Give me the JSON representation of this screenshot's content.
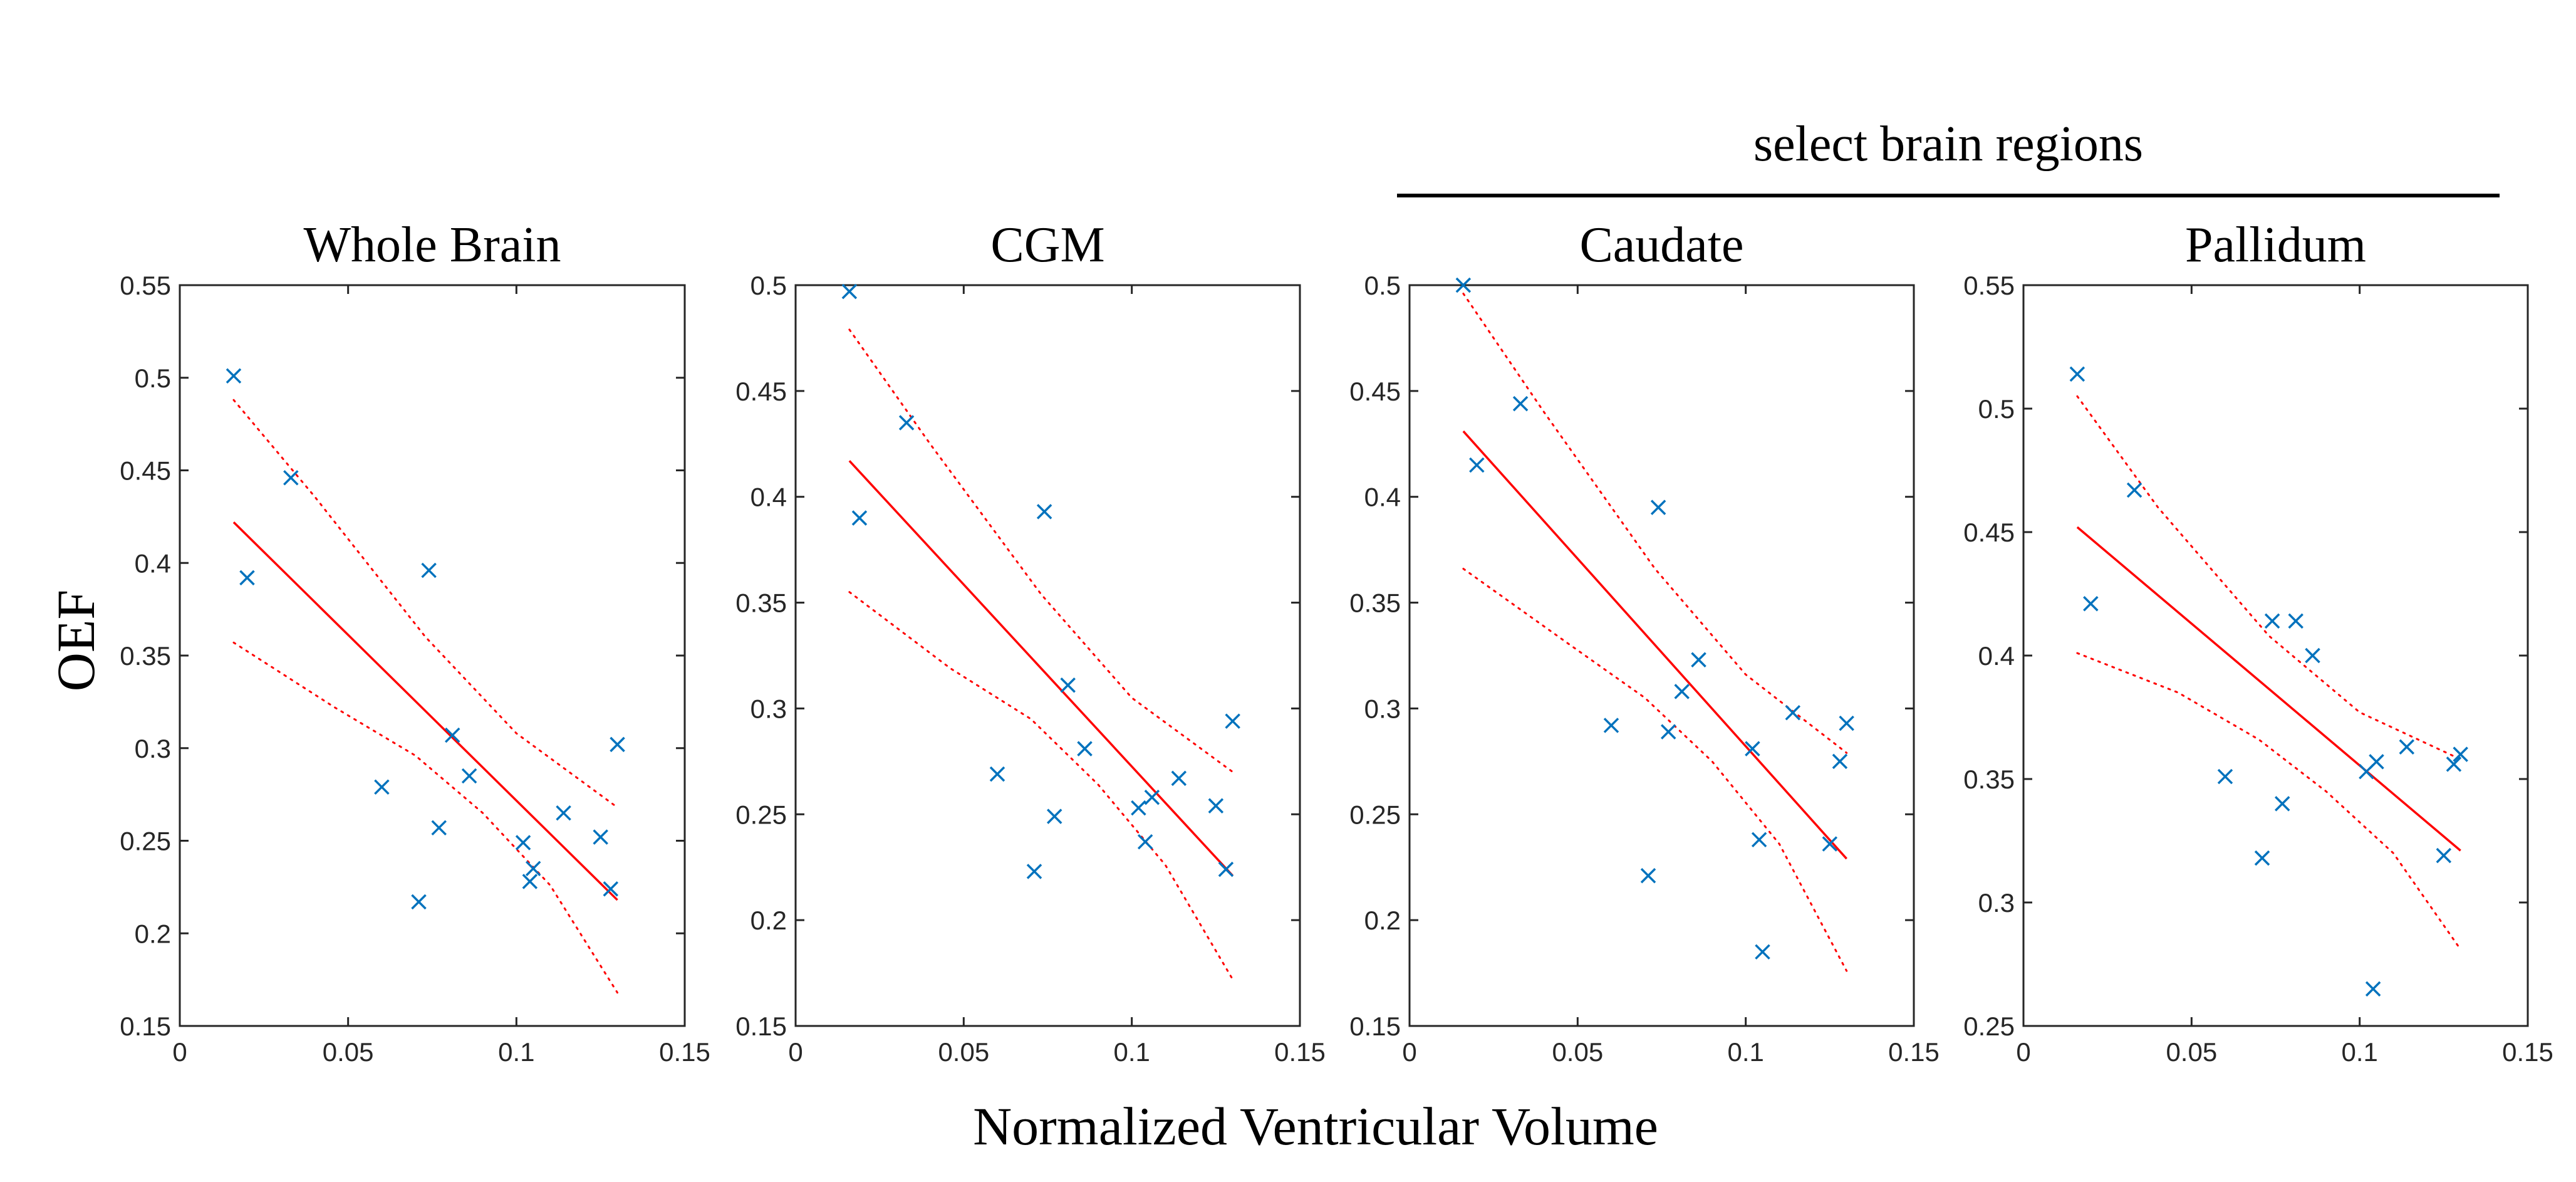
{
  "figure": {
    "xlabel": "Normalized Ventricular Volume",
    "ylabel": "OEF",
    "group_label": "select brain regions",
    "colors": {
      "marker": "#0072BD",
      "fit": "#ff0000",
      "axes": "#262626"
    }
  },
  "chart_data": [
    {
      "type": "scatter",
      "title": "Whole Brain",
      "xlim": [
        0,
        0.15
      ],
      "ylim": [
        0.15,
        0.55
      ],
      "xticks": [
        0,
        0.05,
        0.1,
        0.15
      ],
      "xtick_labels": [
        "0",
        "0.05",
        "0.1",
        "0.15"
      ],
      "yticks": [
        0.15,
        0.2,
        0.25,
        0.3,
        0.35,
        0.4,
        0.45,
        0.5,
        0.55
      ],
      "ytick_labels": [
        "0.15",
        "0.2",
        "0.25",
        "0.3",
        "0.35",
        "0.4",
        "0.45",
        "0.5",
        "0.55"
      ],
      "points": [
        [
          0.016,
          0.501
        ],
        [
          0.02,
          0.392
        ],
        [
          0.033,
          0.446
        ],
        [
          0.06,
          0.279
        ],
        [
          0.071,
          0.217
        ],
        [
          0.074,
          0.396
        ],
        [
          0.077,
          0.257
        ],
        [
          0.081,
          0.307
        ],
        [
          0.086,
          0.285
        ],
        [
          0.102,
          0.249
        ],
        [
          0.104,
          0.228
        ],
        [
          0.105,
          0.235
        ],
        [
          0.114,
          0.265
        ],
        [
          0.125,
          0.252
        ],
        [
          0.128,
          0.224
        ],
        [
          0.13,
          0.302
        ]
      ],
      "fit": [
        [
          0.016,
          0.422
        ],
        [
          0.13,
          0.218
        ]
      ],
      "ci_upper": [
        [
          0.016,
          0.488
        ],
        [
          0.04,
          0.436
        ],
        [
          0.073,
          0.36
        ],
        [
          0.1,
          0.308
        ],
        [
          0.13,
          0.268
        ]
      ],
      "ci_lower": [
        [
          0.016,
          0.357
        ],
        [
          0.046,
          0.322
        ],
        [
          0.07,
          0.296
        ],
        [
          0.09,
          0.265
        ],
        [
          0.11,
          0.226
        ],
        [
          0.13,
          0.168
        ]
      ]
    },
    {
      "type": "scatter",
      "title": "CGM",
      "xlim": [
        0,
        0.15
      ],
      "ylim": [
        0.15,
        0.5
      ],
      "xticks": [
        0,
        0.05,
        0.1,
        0.15
      ],
      "xtick_labels": [
        "0",
        "0.05",
        "0.1",
        "0.15"
      ],
      "yticks": [
        0.15,
        0.2,
        0.25,
        0.3,
        0.35,
        0.4,
        0.45,
        0.5
      ],
      "ytick_labels": [
        "0.15",
        "0.2",
        "0.25",
        "0.3",
        "0.35",
        "0.4",
        "0.45",
        "0.5"
      ],
      "points": [
        [
          0.016,
          0.497
        ],
        [
          0.019,
          0.39
        ],
        [
          0.033,
          0.435
        ],
        [
          0.06,
          0.269
        ],
        [
          0.071,
          0.223
        ],
        [
          0.074,
          0.393
        ],
        [
          0.077,
          0.249
        ],
        [
          0.081,
          0.311
        ],
        [
          0.086,
          0.281
        ],
        [
          0.102,
          0.253
        ],
        [
          0.104,
          0.237
        ],
        [
          0.106,
          0.258
        ],
        [
          0.114,
          0.267
        ],
        [
          0.125,
          0.254
        ],
        [
          0.128,
          0.224
        ],
        [
          0.13,
          0.294
        ]
      ],
      "fit": [
        [
          0.016,
          0.417
        ],
        [
          0.13,
          0.221
        ]
      ],
      "ci_upper": [
        [
          0.016,
          0.479
        ],
        [
          0.04,
          0.425
        ],
        [
          0.073,
          0.354
        ],
        [
          0.1,
          0.305
        ],
        [
          0.13,
          0.27
        ]
      ],
      "ci_lower": [
        [
          0.016,
          0.355
        ],
        [
          0.046,
          0.319
        ],
        [
          0.07,
          0.295
        ],
        [
          0.09,
          0.264
        ],
        [
          0.11,
          0.226
        ],
        [
          0.13,
          0.172
        ]
      ]
    },
    {
      "type": "scatter",
      "title": "Caudate",
      "xlim": [
        0,
        0.15
      ],
      "ylim": [
        0.15,
        0.5
      ],
      "xticks": [
        0,
        0.05,
        0.1,
        0.15
      ],
      "xtick_labels": [
        "0",
        "0.05",
        "0.1",
        "0.15"
      ],
      "yticks": [
        0.15,
        0.2,
        0.25,
        0.3,
        0.35,
        0.4,
        0.45,
        0.5
      ],
      "ytick_labels": [
        "0.15",
        "0.2",
        "0.25",
        "0.3",
        "0.35",
        "0.4",
        "0.45",
        "0.5"
      ],
      "points": [
        [
          0.016,
          0.5
        ],
        [
          0.02,
          0.415
        ],
        [
          0.033,
          0.444
        ],
        [
          0.06,
          0.292
        ],
        [
          0.071,
          0.221
        ],
        [
          0.074,
          0.395
        ],
        [
          0.077,
          0.289
        ],
        [
          0.081,
          0.308
        ],
        [
          0.086,
          0.323
        ],
        [
          0.102,
          0.281
        ],
        [
          0.104,
          0.238
        ],
        [
          0.105,
          0.185
        ],
        [
          0.114,
          0.298
        ],
        [
          0.125,
          0.236
        ],
        [
          0.128,
          0.275
        ],
        [
          0.13,
          0.293
        ]
      ],
      "fit": [
        [
          0.016,
          0.431
        ],
        [
          0.13,
          0.229
        ]
      ],
      "ci_upper": [
        [
          0.016,
          0.496
        ],
        [
          0.04,
          0.44
        ],
        [
          0.073,
          0.366
        ],
        [
          0.1,
          0.316
        ],
        [
          0.13,
          0.279
        ]
      ],
      "ci_lower": [
        [
          0.016,
          0.366
        ],
        [
          0.046,
          0.332
        ],
        [
          0.07,
          0.305
        ],
        [
          0.09,
          0.275
        ],
        [
          0.11,
          0.236
        ],
        [
          0.13,
          0.176
        ]
      ]
    },
    {
      "type": "scatter",
      "title": "Pallidum",
      "xlim": [
        0,
        0.15
      ],
      "ylim": [
        0.25,
        0.55
      ],
      "xticks": [
        0,
        0.05,
        0.1,
        0.15
      ],
      "xtick_labels": [
        "0",
        "0.05",
        "0.1",
        "0.15"
      ],
      "yticks": [
        0.25,
        0.3,
        0.35,
        0.4,
        0.45,
        0.5,
        0.55
      ],
      "ytick_labels": [
        "0.25",
        "0.3",
        "0.35",
        "0.4",
        "0.45",
        "0.5",
        "0.55"
      ],
      "points": [
        [
          0.016,
          0.514
        ],
        [
          0.02,
          0.421
        ],
        [
          0.033,
          0.467
        ],
        [
          0.06,
          0.351
        ],
        [
          0.071,
          0.318
        ],
        [
          0.074,
          0.414
        ],
        [
          0.077,
          0.34
        ],
        [
          0.081,
          0.414
        ],
        [
          0.086,
          0.4
        ],
        [
          0.102,
          0.353
        ],
        [
          0.104,
          0.265
        ],
        [
          0.105,
          0.357
        ],
        [
          0.114,
          0.363
        ],
        [
          0.125,
          0.319
        ],
        [
          0.128,
          0.356
        ],
        [
          0.13,
          0.36
        ]
      ],
      "fit": [
        [
          0.016,
          0.452
        ],
        [
          0.13,
          0.321
        ]
      ],
      "ci_upper": [
        [
          0.016,
          0.505
        ],
        [
          0.04,
          0.46
        ],
        [
          0.073,
          0.408
        ],
        [
          0.1,
          0.377
        ],
        [
          0.13,
          0.358
        ]
      ],
      "ci_lower": [
        [
          0.016,
          0.401
        ],
        [
          0.046,
          0.385
        ],
        [
          0.07,
          0.366
        ],
        [
          0.09,
          0.345
        ],
        [
          0.11,
          0.32
        ],
        [
          0.13,
          0.281
        ]
      ]
    }
  ]
}
